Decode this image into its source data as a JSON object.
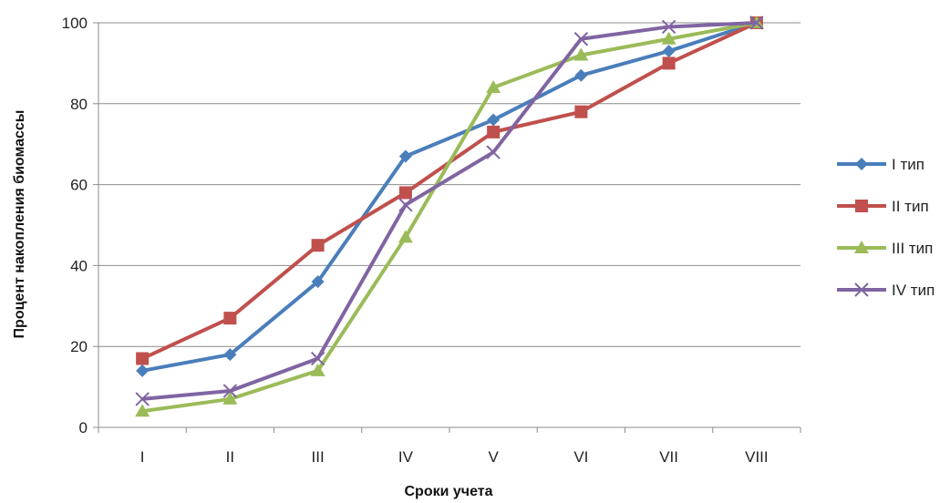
{
  "chart_data": {
    "type": "line",
    "title": "",
    "xlabel": "Сроки учета",
    "ylabel": "Процент накопления биомассы",
    "categories": [
      "I",
      "II",
      "III",
      "IV",
      "V",
      "VI",
      "VII",
      "VIII"
    ],
    "ylim": [
      0,
      100
    ],
    "yticks": [
      0,
      20,
      40,
      60,
      80,
      100
    ],
    "grid": true,
    "legend_position": "right",
    "series": [
      {
        "name": "I тип",
        "color": "#4a7ebb",
        "marker": "diamond",
        "values": [
          14,
          18,
          36,
          67,
          76,
          87,
          93,
          100
        ]
      },
      {
        "name": "II тип",
        "color": "#c0504d",
        "marker": "square",
        "values": [
          17,
          27,
          45,
          58,
          73,
          78,
          90,
          100
        ]
      },
      {
        "name": "III тип",
        "color": "#9bbb59",
        "marker": "triangle",
        "values": [
          4,
          7,
          14,
          47,
          84,
          92,
          96,
          100
        ]
      },
      {
        "name": "IV тип",
        "color": "#8064a2",
        "marker": "x",
        "values": [
          7,
          9,
          17,
          55,
          68,
          96,
          99,
          100
        ]
      }
    ]
  }
}
